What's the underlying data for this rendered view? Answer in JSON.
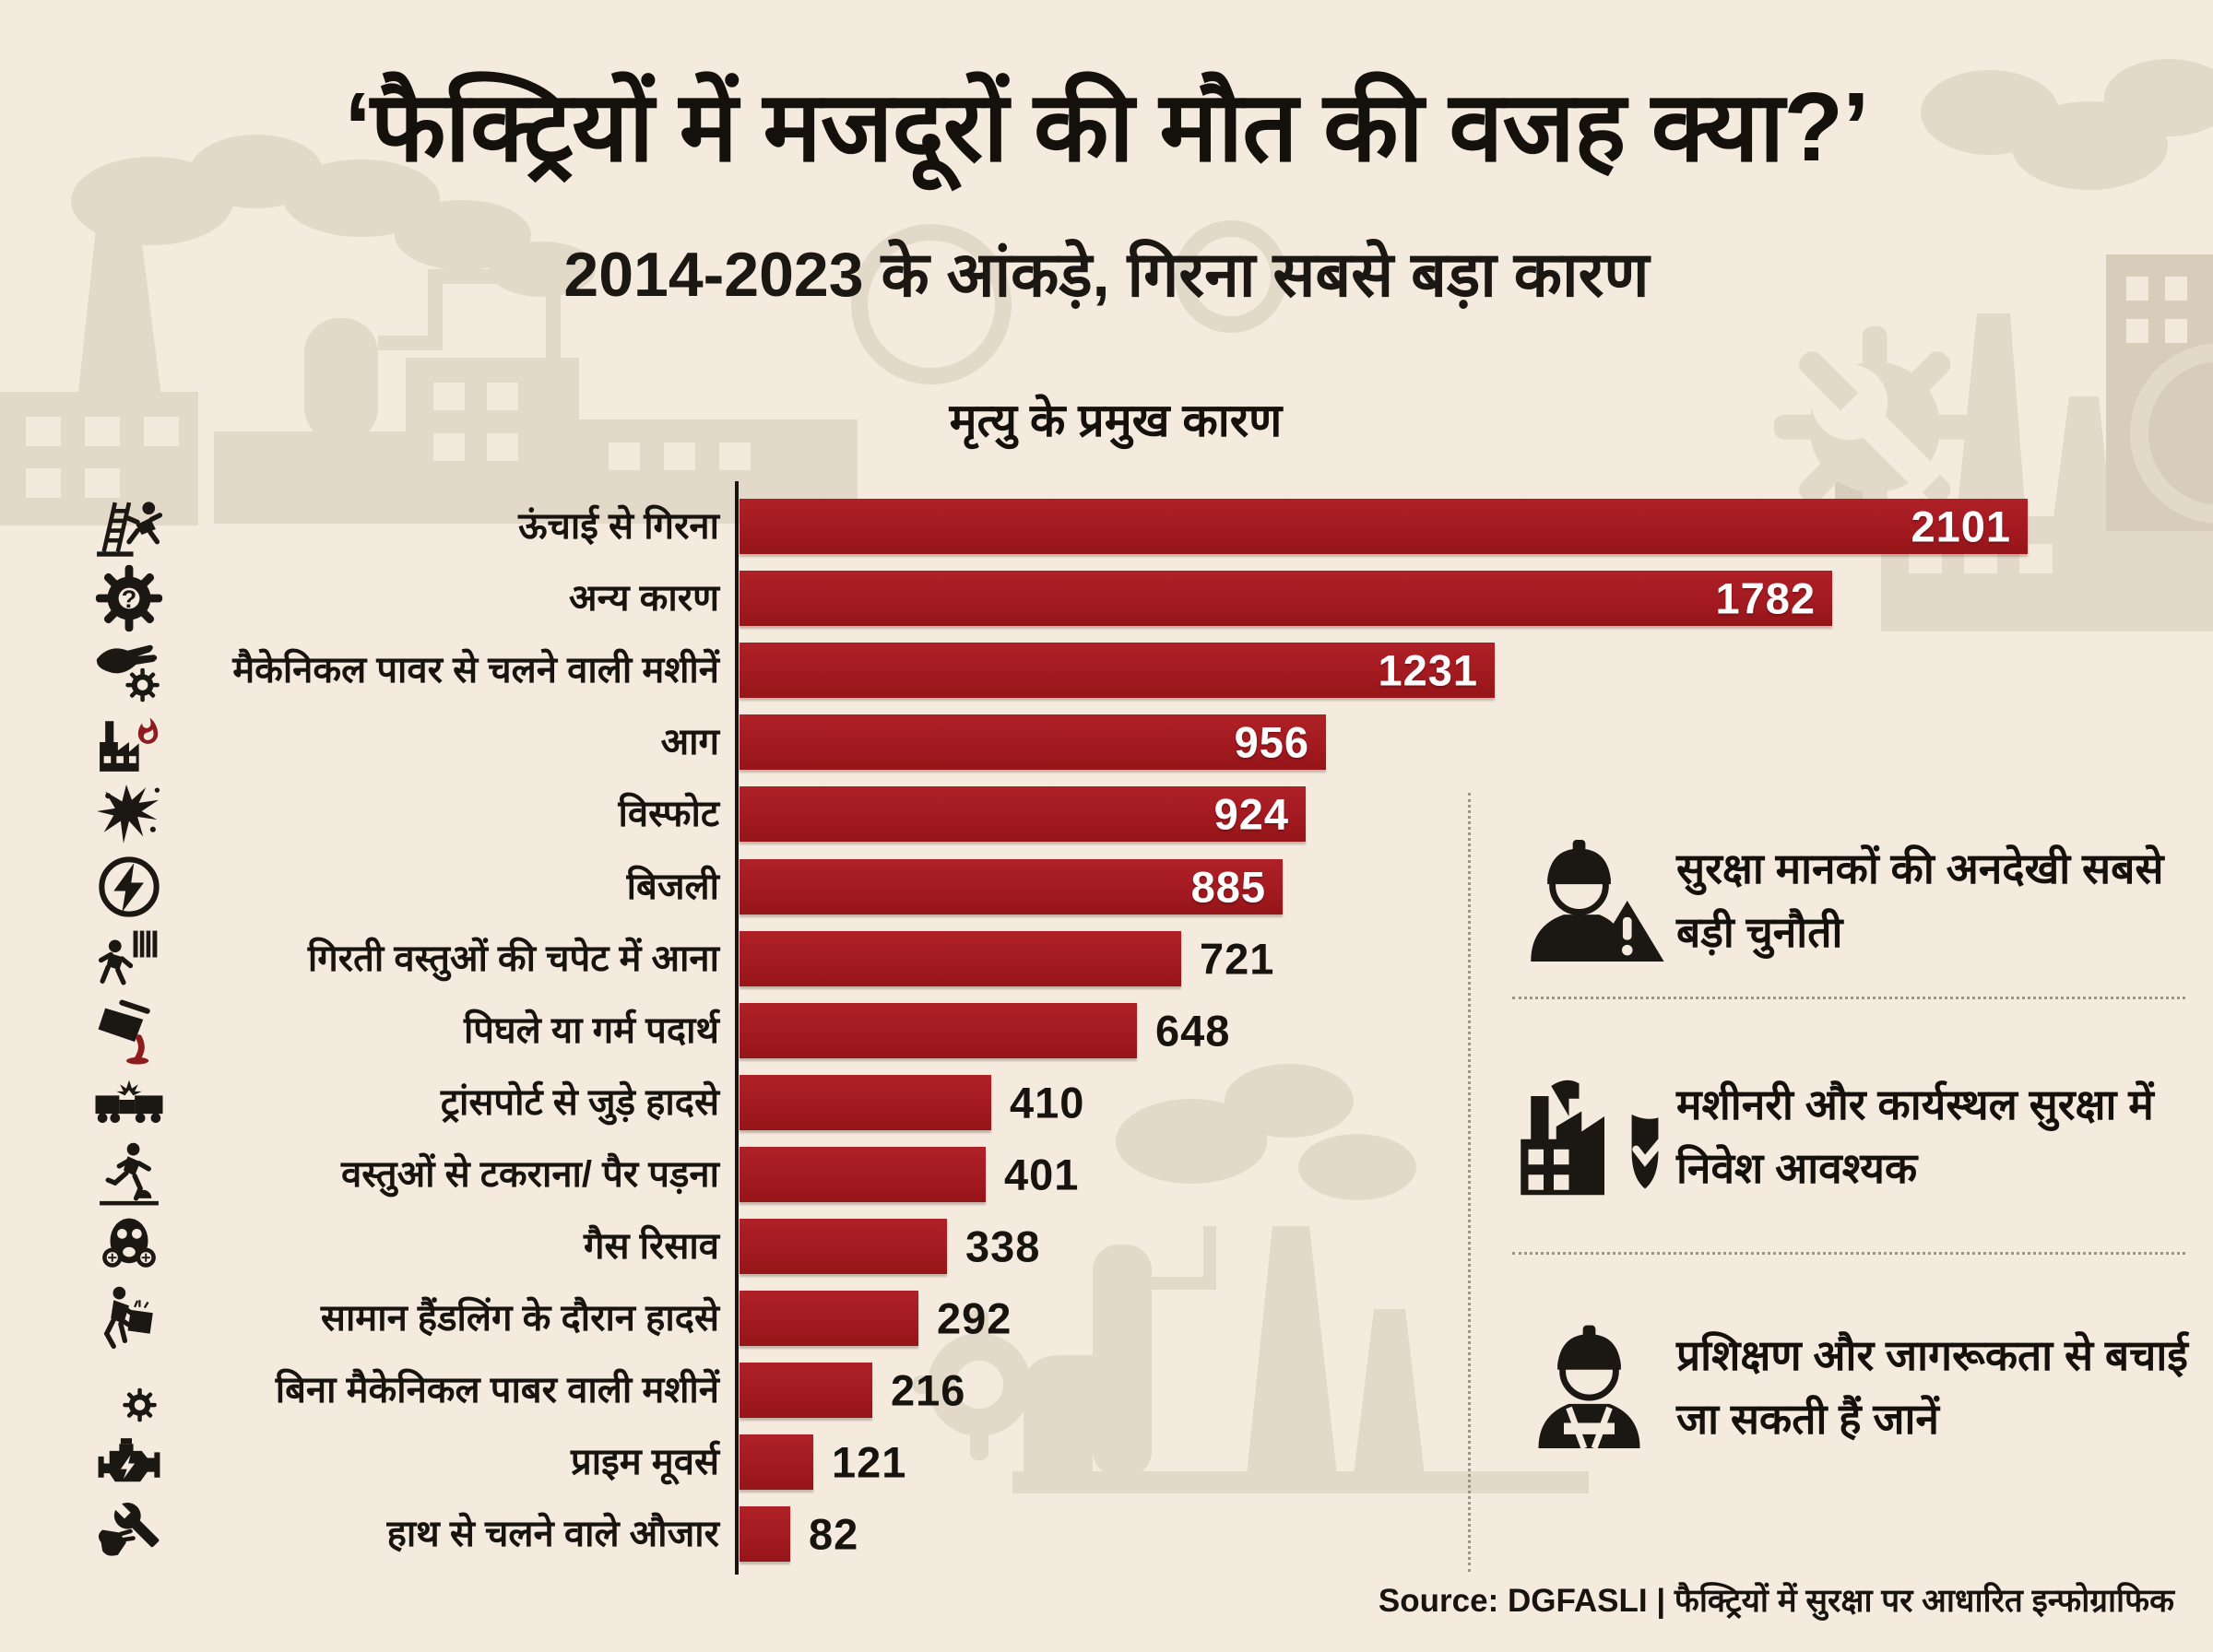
{
  "header": {
    "title": "‘फैक्ट्रियों में मजदूरों की मौत की वजह क्या?’",
    "subtitle": "2014-2023 के आंकड़े, गिरना सबसे बड़ा कारण"
  },
  "chart_data": {
    "type": "bar",
    "orientation": "horizontal",
    "title": "मृत्यु के प्रमुख कारण",
    "xlim": [
      0,
      2101
    ],
    "bar_color": "#A31A20",
    "rows": [
      {
        "label": "ऊंचाई से गिरना",
        "value": 2101,
        "icon": "fall-from-height-icon"
      },
      {
        "label": "अन्य कारण",
        "value": 1782,
        "icon": "gear-question-icon"
      },
      {
        "label": "मैकेनिकल पावर से चलने वाली मशीनें",
        "value": 1231,
        "icon": "hand-in-machine-icon"
      },
      {
        "label": "आग",
        "value": 956,
        "icon": "factory-fire-icon"
      },
      {
        "label": "विस्फोट",
        "value": 924,
        "icon": "explosion-icon"
      },
      {
        "label": "बिजली",
        "value": 885,
        "icon": "electricity-icon"
      },
      {
        "label": "गिरती वस्तुओं की चपेट में आना",
        "value": 721,
        "icon": "falling-object-icon"
      },
      {
        "label": "पिघले या गर्म पदार्थ",
        "value": 648,
        "icon": "molten-metal-icon"
      },
      {
        "label": "ट्रांसपोर्ट से जुड़े हादसे",
        "value": 410,
        "icon": "transport-accident-icon"
      },
      {
        "label": "वस्तुओं से टकराना/ पैर पड़ना",
        "value": 401,
        "icon": "trip-strike-icon"
      },
      {
        "label": "गैस रिसाव",
        "value": 338,
        "icon": "gas-mask-icon"
      },
      {
        "label": "सामान हैंडलिंग के दौरान हादसे",
        "value": 292,
        "icon": "material-handling-icon"
      },
      {
        "label": "बिना मैकेनिकल पाबर वाली मशीनें",
        "value": 216,
        "icon": "hand-in-gear-icon"
      },
      {
        "label": "प्राइम मूवर्स",
        "value": 121,
        "icon": "engine-icon"
      },
      {
        "label": "हाथ से चलने वाले औजार",
        "value": 82,
        "icon": "hand-tools-icon"
      }
    ]
  },
  "callouts": [
    {
      "icon": "worker-warning-icon",
      "text": "सुरक्षा मानकों की अनदेखी सबसे बड़ी चुनौती"
    },
    {
      "icon": "factory-shield-icon",
      "text": "मशीनरी और कार्यस्थल सुरक्षा में निवेश आवश्यक"
    },
    {
      "icon": "worker-training-icon",
      "text": "प्रशिक्षण और जागरूकता से बचाई जा सकती हैं जानें"
    }
  ],
  "source": "Source: DGFASLI | फैक्ट्रियों में सुरक्षा पर आधारित इन्फोग्राफिक",
  "colors": {
    "background": "#F4EBDE",
    "bar": "#A31A20",
    "accent_red": "#8E1B1E",
    "text": "#17130F",
    "value_inside": "#FFFFFF",
    "decor": "#E3D9C8"
  }
}
